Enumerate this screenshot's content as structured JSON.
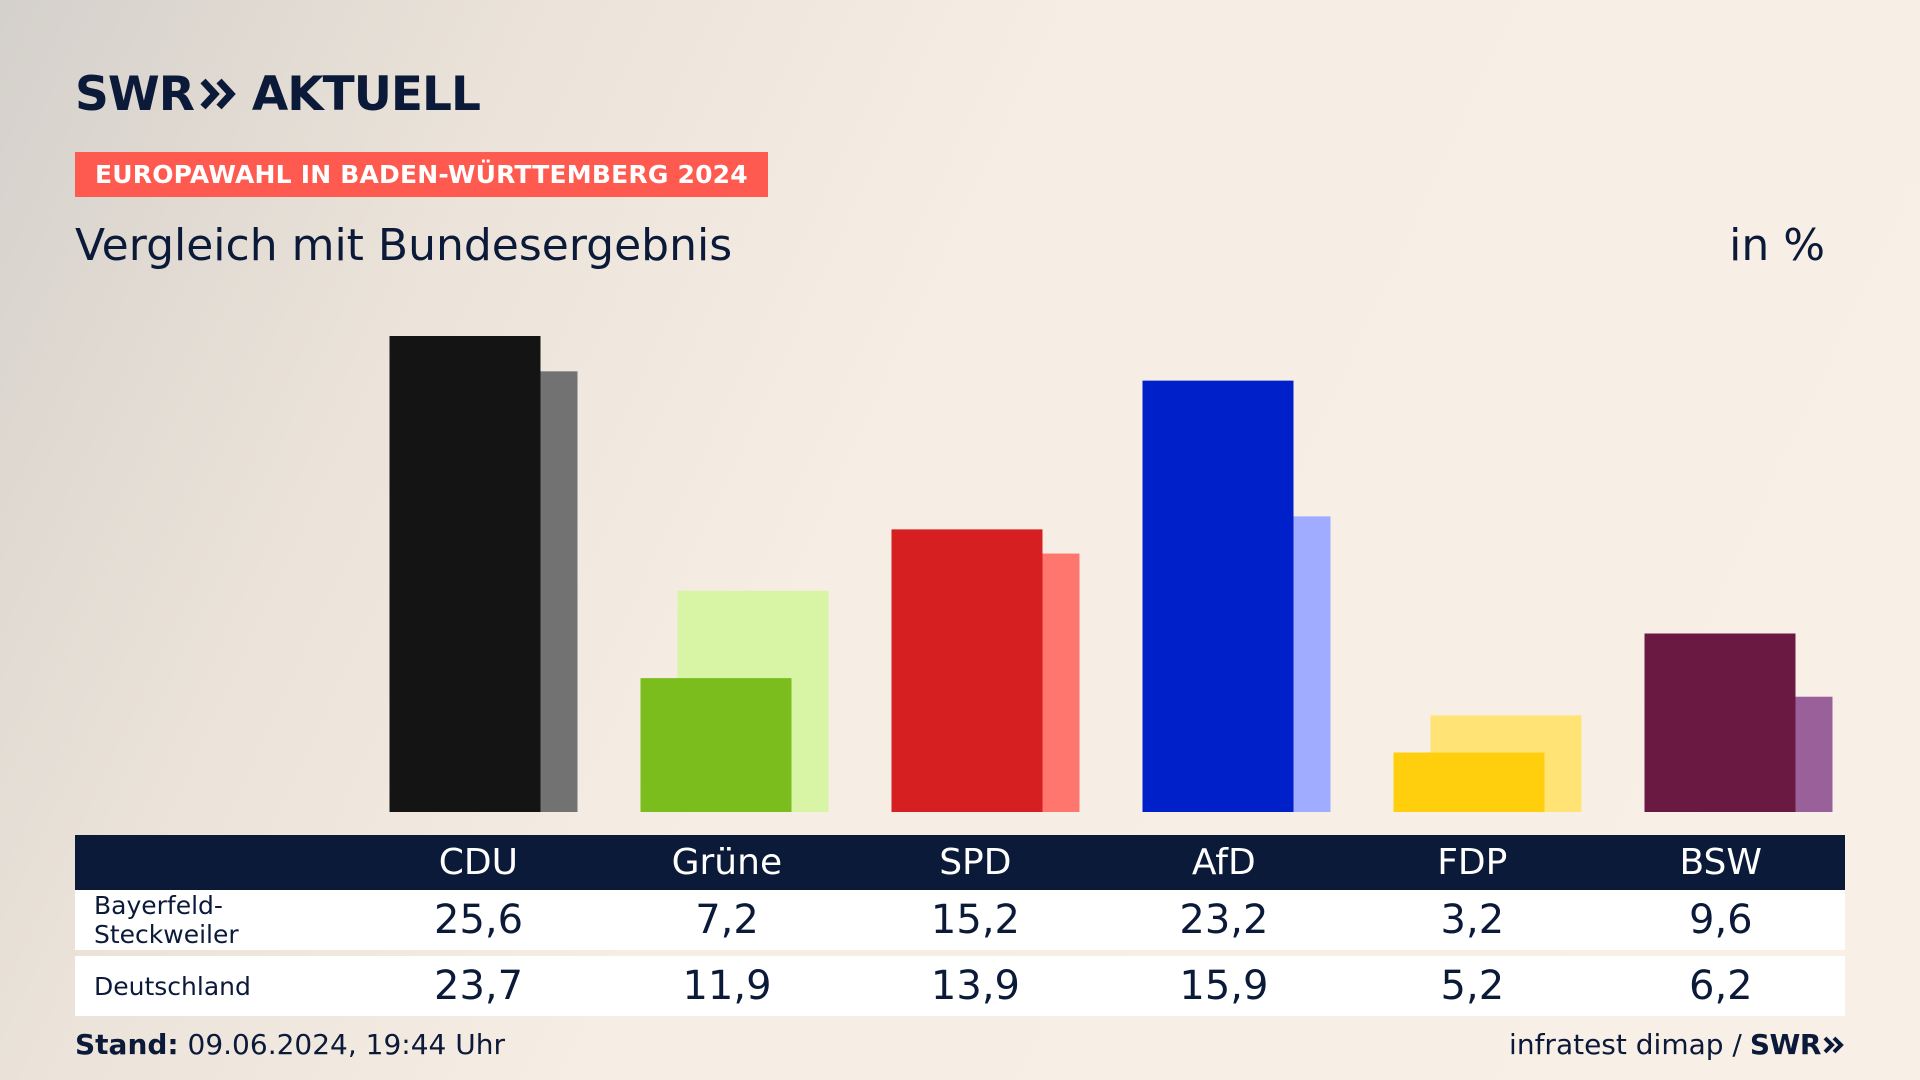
{
  "header": {
    "logo_prefix": "SWR",
    "logo_suffix": "AKTUELL",
    "banner": "EUROPAWAHL IN BADEN-WÜRTTEMBERG 2024",
    "subtitle": "Vergleich mit Bundesergebnis",
    "unit": "in %"
  },
  "chart_data": {
    "type": "bar",
    "categories": [
      "CDU",
      "Grüne",
      "SPD",
      "AfD",
      "FDP",
      "BSW"
    ],
    "series": [
      {
        "name": "Bayerfeld-Steckweiler",
        "values": [
          25.6,
          7.2,
          15.2,
          23.2,
          3.2,
          9.6
        ]
      },
      {
        "name": "Deutschland",
        "values": [
          23.7,
          11.9,
          13.9,
          15.9,
          5.2,
          6.2
        ]
      }
    ],
    "colors_primary": [
      "#141414",
      "#7bbd1c",
      "#d51f20",
      "#0021c9",
      "#ffcf0e",
      "#6a1a42"
    ],
    "colors_secondary": [
      "#727272",
      "#d8f5a6",
      "#ff766e",
      "#9facff",
      "#ffe475",
      "#9a609a"
    ],
    "ylim": [
      0,
      25.6
    ],
    "grid": false,
    "legend": "table-below"
  },
  "table": {
    "row1_label": "Bayerfeld-Steckweiler",
    "row2_label": "Deutschland",
    "row1_values": [
      "25,6",
      "7,2",
      "15,2",
      "23,2",
      "3,2",
      "9,6"
    ],
    "row2_values": [
      "23,7",
      "11,9",
      "13,9",
      "15,9",
      "5,2",
      "6,2"
    ]
  },
  "footer": {
    "stand_label": "Stand:",
    "stand_value": "09.06.2024, 19:44 Uhr",
    "source": "infratest dimap /",
    "source_brand": "SWR"
  }
}
